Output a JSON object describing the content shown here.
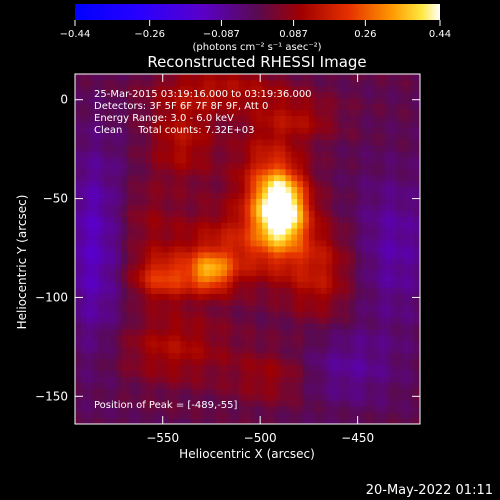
{
  "chart_data": {
    "type": "heatmap",
    "title": "Reconstructed RHESSI Image",
    "xlabel": "Heliocentric X (arcsec)",
    "ylabel": "Heliocentric Y (arcsec)",
    "xlim": [
      -595,
      -418
    ],
    "ylim": [
      -164,
      13
    ],
    "x_ticks": [
      -550,
      -500,
      -450
    ],
    "y_ticks": [
      0,
      -50,
      -100,
      -150
    ],
    "x_tick_labels": [
      "−550",
      "−500",
      "−450"
    ],
    "y_tick_labels": [
      "0",
      "−50",
      "−100",
      "−150"
    ],
    "colorbar": {
      "min": -0.44,
      "max": 0.44,
      "tick_labels": [
        "−0.44",
        "−0.26",
        "−0.087",
        "0.087",
        "0.26",
        "0.44"
      ],
      "ticks": [
        -0.44,
        -0.26,
        -0.087,
        0.087,
        0.26,
        0.44
      ],
      "unit_label": "(photons cm⁻² s⁻¹ asec⁻²)"
    },
    "info_lines": [
      "25-Mar-2015 03:19:16.000 to 03:19:36.000",
      "Detectors: 3F 5F 6F 7F 8F 9F, Att 0",
      "Energy Range: 3.0 - 6.0 keV",
      "Clean     Total counts: 7.32E+03"
    ],
    "peak_label": "Position of Peak = [-489,-55]",
    "peak": [
      -489,
      -55
    ],
    "sources": [
      {
        "x": -489,
        "y": -55,
        "sx": 9,
        "sy": 13,
        "amp": 0.44
      },
      {
        "x": -497,
        "y": -40,
        "sx": 12,
        "sy": 20,
        "amp": 0.15
      },
      {
        "x": -525,
        "y": -87,
        "sx": 8,
        "sy": 7,
        "amp": 0.24
      },
      {
        "x": -550,
        "y": -90,
        "sx": 12,
        "sy": 8,
        "amp": 0.19
      },
      {
        "x": -510,
        "y": -75,
        "sx": 28,
        "sy": 14,
        "amp": 0.15
      },
      {
        "x": -470,
        "y": -90,
        "sx": 12,
        "sy": 16,
        "amp": 0.12
      },
      {
        "x": -540,
        "y": -20,
        "sx": 12,
        "sy": 15,
        "amp": 0.13
      },
      {
        "x": -520,
        "y": 5,
        "sx": 24,
        "sy": 8,
        "amp": 0.12
      },
      {
        "x": -480,
        "y": -10,
        "sx": 14,
        "sy": 8,
        "amp": 0.1
      },
      {
        "x": -545,
        "y": -125,
        "sx": 20,
        "sy": 13,
        "amp": 0.12
      },
      {
        "x": -495,
        "y": -140,
        "sx": 14,
        "sy": 10,
        "amp": 0.09
      },
      {
        "x": -560,
        "y": -60,
        "sx": 10,
        "sy": 14,
        "amp": 0.06
      }
    ],
    "negative_regions": [
      {
        "x": -585,
        "y": -75,
        "sx": 12,
        "sy": 38,
        "amp": -0.13
      },
      {
        "x": -432,
        "y": -75,
        "sx": 14,
        "sy": 26,
        "amp": -0.1
      },
      {
        "x": -455,
        "y": -135,
        "sx": 18,
        "sy": 14,
        "amp": -0.08
      }
    ],
    "footer": "20-May-2022 01:11"
  }
}
